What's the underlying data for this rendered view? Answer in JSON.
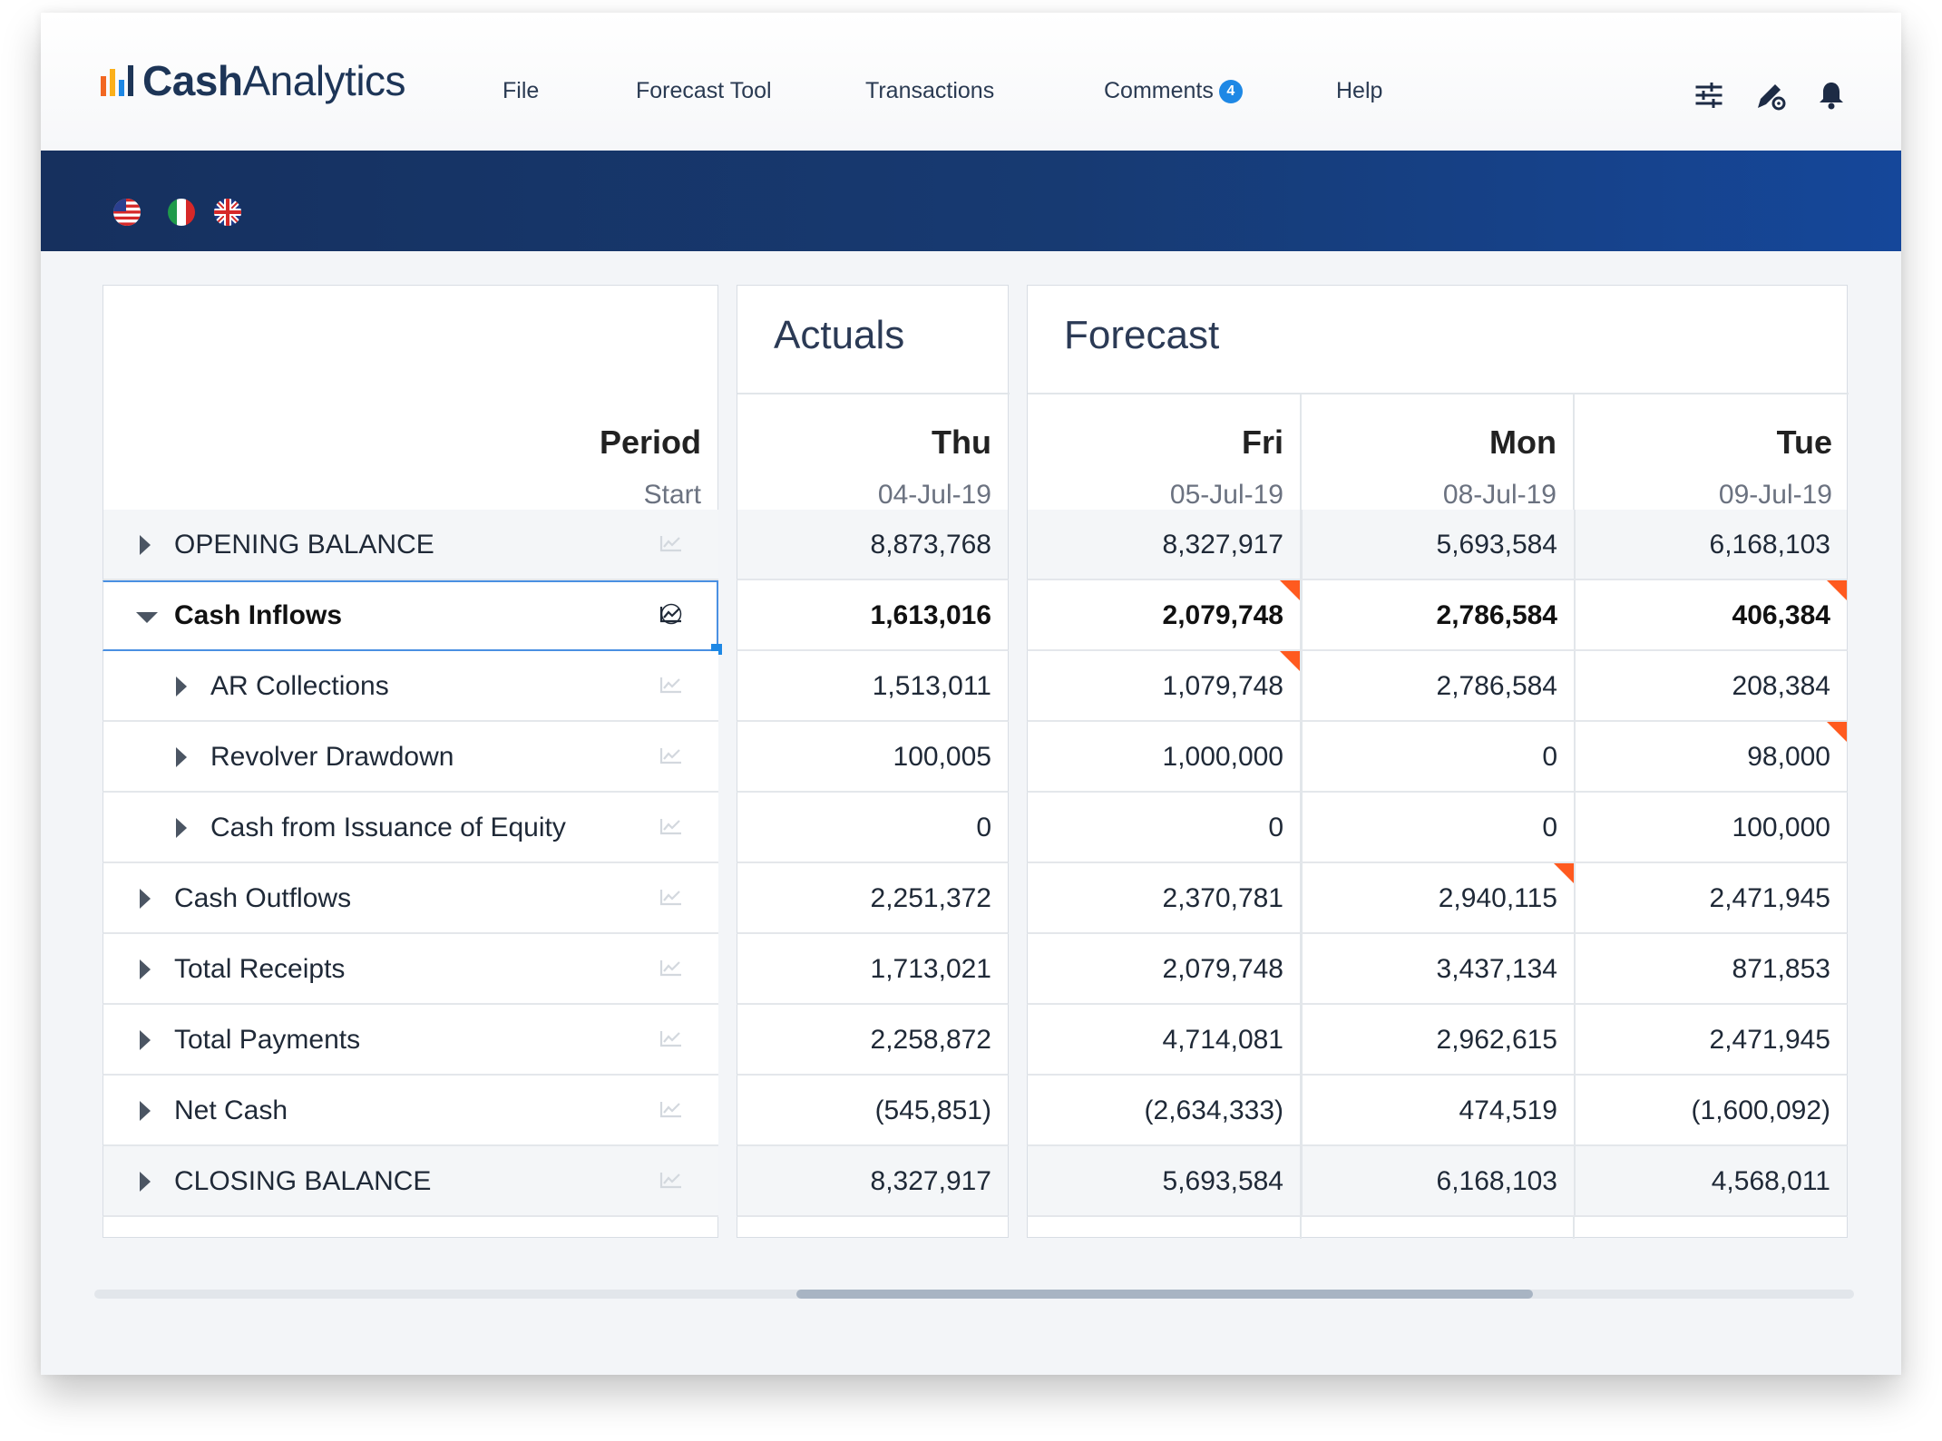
{
  "app": {
    "logo_part1": "Cash",
    "logo_part2": "Analytics",
    "logo_bar_colors": [
      "#f26722",
      "#fbb01a",
      "#1e88e5",
      "#1d3557"
    ]
  },
  "nav": {
    "file": "File",
    "forecast_tool": "Forecast Tool",
    "transactions": "Transactions",
    "comments": "Comments",
    "comments_count": "4",
    "help": "Help"
  },
  "toolbar_icons": [
    "sliders-icon",
    "pen-settings-icon",
    "bell-icon"
  ],
  "flags": [
    "us-flag-icon",
    "italy-flag-icon",
    "uk-flag-icon"
  ],
  "grid": {
    "actuals_title": "Actuals",
    "forecast_title": "Forecast",
    "period_label": "Period",
    "start_label": "Start",
    "columns": [
      {
        "day": "Thu",
        "date": "04-Jul-19"
      },
      {
        "day": "Fri",
        "date": "05-Jul-19"
      },
      {
        "day": "Mon",
        "date": "08-Jul-19"
      },
      {
        "day": "Tue",
        "date": "09-Jul-19"
      }
    ],
    "rows": [
      {
        "label": "OPENING BALANCE",
        "values": [
          "8,873,768",
          "8,327,917",
          "5,693,584",
          "6,168,103"
        ]
      },
      {
        "label": "Cash Inflows",
        "values": [
          "1,613,016",
          "2,079,748",
          "2,786,584",
          "406,384"
        ]
      },
      {
        "label": "AR Collections",
        "values": [
          "1,513,011",
          "1,079,748",
          "2,786,584",
          "208,384"
        ]
      },
      {
        "label": "Revolver Drawdown",
        "values": [
          "100,005",
          "1,000,000",
          "0",
          "98,000"
        ]
      },
      {
        "label": "Cash from Issuance of Equity",
        "values": [
          "0",
          "0",
          "0",
          "100,000"
        ]
      },
      {
        "label": "Cash Outflows",
        "values": [
          "2,251,372",
          "2,370,781",
          "2,940,115",
          "2,471,945"
        ]
      },
      {
        "label": "Total Receipts",
        "values": [
          "1,713,021",
          "2,079,748",
          "3,437,134",
          "871,853"
        ]
      },
      {
        "label": "Total Payments",
        "values": [
          "2,258,872",
          "4,714,081",
          "2,962,615",
          "2,471,945"
        ]
      },
      {
        "label": "Net Cash",
        "values": [
          "(545,851)",
          "(2,634,333)",
          "474,519",
          "(1,600,092)"
        ]
      },
      {
        "label": "CLOSING BALANCE",
        "values": [
          "8,327,917",
          "5,693,584",
          "6,168,103",
          "4,568,011"
        ]
      }
    ]
  },
  "colors": {
    "accent": "#1e88e5",
    "band_dark": "#16305e",
    "band_light": "#15479a",
    "comment_marker": "#ff5a1f"
  }
}
